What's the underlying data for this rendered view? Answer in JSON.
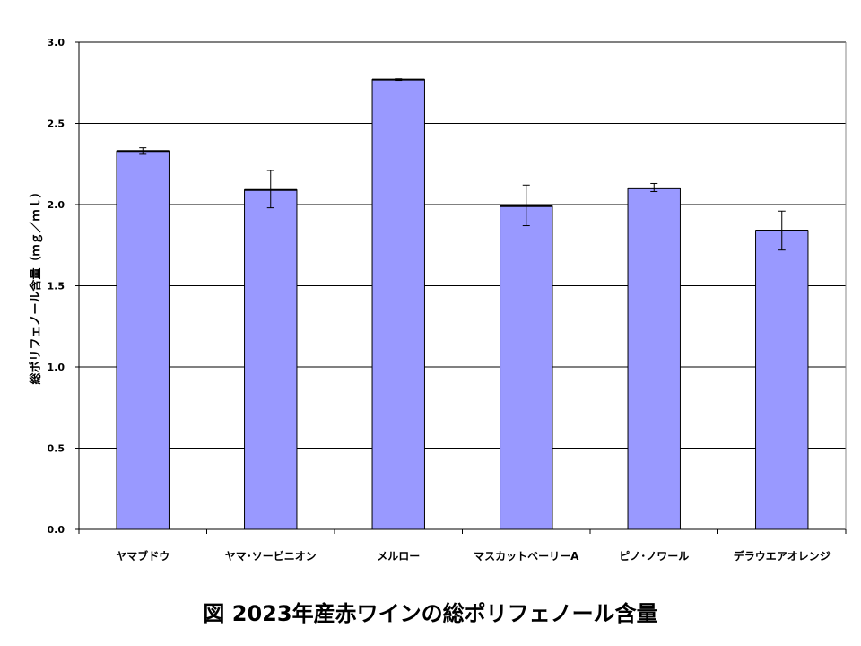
{
  "chart_data": {
    "type": "bar",
    "categories": [
      "ヤマブドウ",
      "ヤマ･ソービニオン",
      "メルロー",
      "マスカットベーリーA",
      "ピノ･ノワール",
      "デラウエアオレンジ"
    ],
    "values": [
      2.33,
      2.09,
      2.77,
      1.99,
      2.1,
      1.84
    ],
    "error_low": [
      2.31,
      1.98,
      2.765,
      1.87,
      2.08,
      1.72
    ],
    "error_high": [
      2.35,
      2.21,
      2.775,
      2.12,
      2.13,
      1.96
    ],
    "ylabel": "総ポリフェノール含量（ｍｇ／ｍｌ）",
    "ylim": [
      0,
      3.0
    ],
    "yticks": [
      "0.0",
      "0.5",
      "1.0",
      "1.5",
      "2.0",
      "2.5",
      "3.0"
    ],
    "grid": true,
    "bar_color": "#9999ff"
  },
  "caption": "図 2023年産赤ワインの総ポリフェノール含量"
}
